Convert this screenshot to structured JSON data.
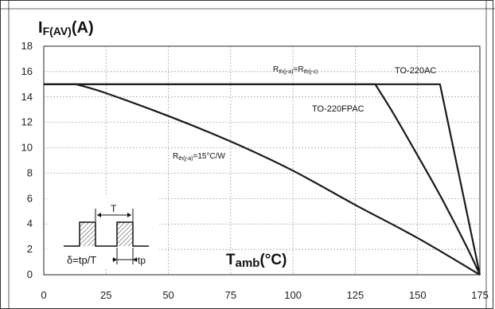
{
  "chart_data": {
    "type": "line",
    "y_title_main": "I",
    "y_title_sub": "F(AV)",
    "y_title_unit": "(A)",
    "x_title_main": "T",
    "x_title_sub": "amb",
    "x_title_unit": "(°C)",
    "xlim": [
      0,
      175
    ],
    "ylim": [
      0,
      18
    ],
    "x_ticks": [
      "0",
      "25",
      "50",
      "75",
      "100",
      "125",
      "150",
      "175"
    ],
    "y_ticks": [
      "0",
      "2",
      "4",
      "6",
      "8",
      "10",
      "12",
      "14",
      "16",
      "18"
    ],
    "grid": true,
    "series": [
      {
        "name": "TO-220AC",
        "x": [
          0,
          159,
          175
        ],
        "y": [
          15,
          15,
          0
        ]
      },
      {
        "name": "TO-220FPAC",
        "x": [
          0,
          133,
          140,
          150,
          160,
          170,
          175
        ],
        "y": [
          15,
          15,
          12.8,
          9.4,
          5.9,
          2.1,
          0
        ]
      },
      {
        "name": "Rth(j-a)=15°C/W",
        "x": [
          0,
          13,
          25,
          50,
          75,
          100,
          125,
          150,
          175
        ],
        "y": [
          15,
          15,
          14.3,
          12.5,
          10.5,
          8.2,
          5.5,
          2.9,
          0
        ]
      }
    ],
    "annotations": {
      "rth_eq": {
        "pre": "R",
        "sub1": "th(j-a)",
        "mid": "=R",
        "sub2": "th(j-c)"
      },
      "rth_15": {
        "pre": "R",
        "sub1": "th(j-a)",
        "post": "=15°C/W"
      },
      "to220ac": "TO-220AC",
      "to220fpac": "TO-220FPAC"
    },
    "inset": {
      "period_label": "T",
      "duty_label": "δ=tp/T",
      "tp_label": "tp"
    }
  }
}
